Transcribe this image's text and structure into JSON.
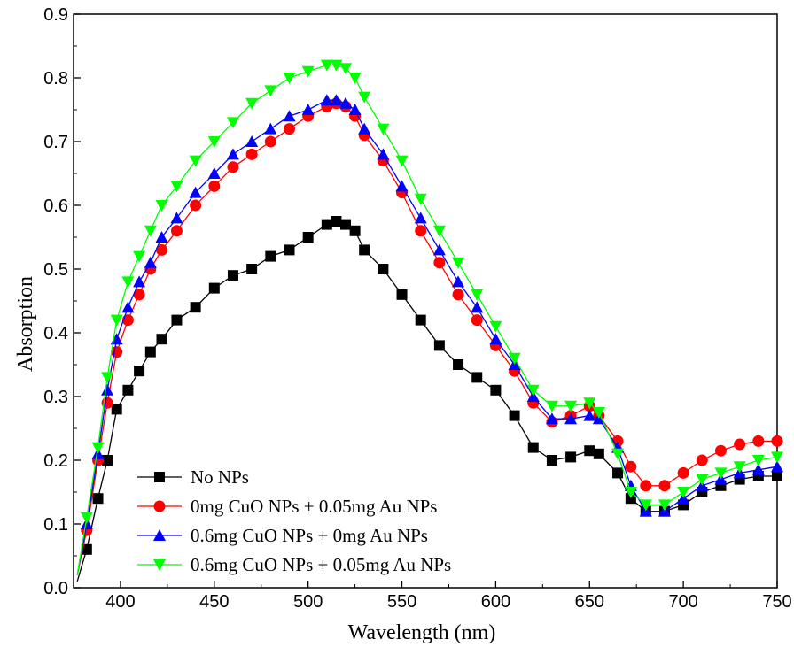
{
  "chart_data": {
    "type": "line",
    "title": "",
    "xlabel": "Wavelength (nm)",
    "ylabel": "Absorption",
    "xlim": [
      375,
      750
    ],
    "ylim": [
      0.0,
      0.9
    ],
    "x_ticks": [
      400,
      450,
      500,
      550,
      600,
      650,
      700,
      750
    ],
    "y_ticks": [
      0.0,
      0.1,
      0.2,
      0.3,
      0.4,
      0.5,
      0.6,
      0.7,
      0.8,
      0.9
    ],
    "x_tick_labels": [
      "400",
      "450",
      "500",
      "550",
      "600",
      "650",
      "700",
      "750"
    ],
    "y_tick_labels": [
      "0.0",
      "0.1",
      "0.2",
      "0.3",
      "0.4",
      "0.5",
      "0.6",
      "0.7",
      "0.8",
      "0.9"
    ],
    "grid": false,
    "legend_position": "bottom-left",
    "x": [
      377,
      382,
      388,
      393,
      398,
      404,
      410,
      416,
      422,
      430,
      440,
      450,
      460,
      470,
      480,
      490,
      500,
      510,
      515,
      520,
      525,
      530,
      540,
      550,
      560,
      570,
      580,
      590,
      600,
      610,
      620,
      630,
      640,
      650,
      655,
      665,
      672,
      680,
      690,
      700,
      710,
      720,
      730,
      740,
      750
    ],
    "series": [
      {
        "name": "No NPs",
        "marker": "square",
        "color": "#000000",
        "values": [
          0.01,
          0.06,
          0.14,
          0.2,
          0.28,
          0.31,
          0.34,
          0.37,
          0.39,
          0.42,
          0.44,
          0.47,
          0.49,
          0.5,
          0.52,
          0.53,
          0.55,
          0.57,
          0.575,
          0.57,
          0.56,
          0.53,
          0.5,
          0.46,
          0.42,
          0.38,
          0.35,
          0.33,
          0.31,
          0.27,
          0.22,
          0.2,
          0.205,
          0.215,
          0.21,
          0.18,
          0.14,
          0.12,
          0.12,
          0.13,
          0.15,
          0.16,
          0.17,
          0.175,
          0.175
        ]
      },
      {
        "name": "0mg CuO NPs + 0.05mg Au NPs",
        "marker": "circle",
        "color": "#ff0000",
        "values": [
          0.02,
          0.09,
          0.2,
          0.29,
          0.37,
          0.42,
          0.46,
          0.5,
          0.53,
          0.56,
          0.6,
          0.63,
          0.66,
          0.68,
          0.7,
          0.72,
          0.74,
          0.755,
          0.76,
          0.755,
          0.74,
          0.71,
          0.67,
          0.62,
          0.56,
          0.51,
          0.46,
          0.42,
          0.38,
          0.34,
          0.29,
          0.26,
          0.27,
          0.285,
          0.27,
          0.23,
          0.19,
          0.16,
          0.16,
          0.18,
          0.2,
          0.215,
          0.225,
          0.23,
          0.23
        ]
      },
      {
        "name": "0.6mg CuO NPs + 0mg Au NPs",
        "marker": "triangle-up",
        "color": "#0000ff",
        "values": [
          0.02,
          0.1,
          0.21,
          0.31,
          0.39,
          0.44,
          0.48,
          0.51,
          0.55,
          0.58,
          0.62,
          0.65,
          0.68,
          0.7,
          0.72,
          0.74,
          0.75,
          0.765,
          0.765,
          0.76,
          0.75,
          0.72,
          0.68,
          0.63,
          0.58,
          0.53,
          0.48,
          0.44,
          0.39,
          0.35,
          0.3,
          0.265,
          0.265,
          0.27,
          0.265,
          0.22,
          0.16,
          0.12,
          0.12,
          0.14,
          0.16,
          0.17,
          0.18,
          0.185,
          0.19
        ]
      },
      {
        "name": "0.6mg CuO NPs + 0.05mg Au NPs",
        "marker": "triangle-down",
        "color": "#00ff00",
        "values": [
          0.02,
          0.11,
          0.22,
          0.33,
          0.42,
          0.48,
          0.52,
          0.56,
          0.6,
          0.63,
          0.67,
          0.7,
          0.73,
          0.76,
          0.78,
          0.8,
          0.81,
          0.82,
          0.82,
          0.815,
          0.8,
          0.77,
          0.72,
          0.67,
          0.61,
          0.56,
          0.51,
          0.46,
          0.41,
          0.36,
          0.31,
          0.285,
          0.285,
          0.29,
          0.275,
          0.21,
          0.15,
          0.13,
          0.13,
          0.15,
          0.17,
          0.18,
          0.19,
          0.2,
          0.205
        ]
      }
    ]
  }
}
